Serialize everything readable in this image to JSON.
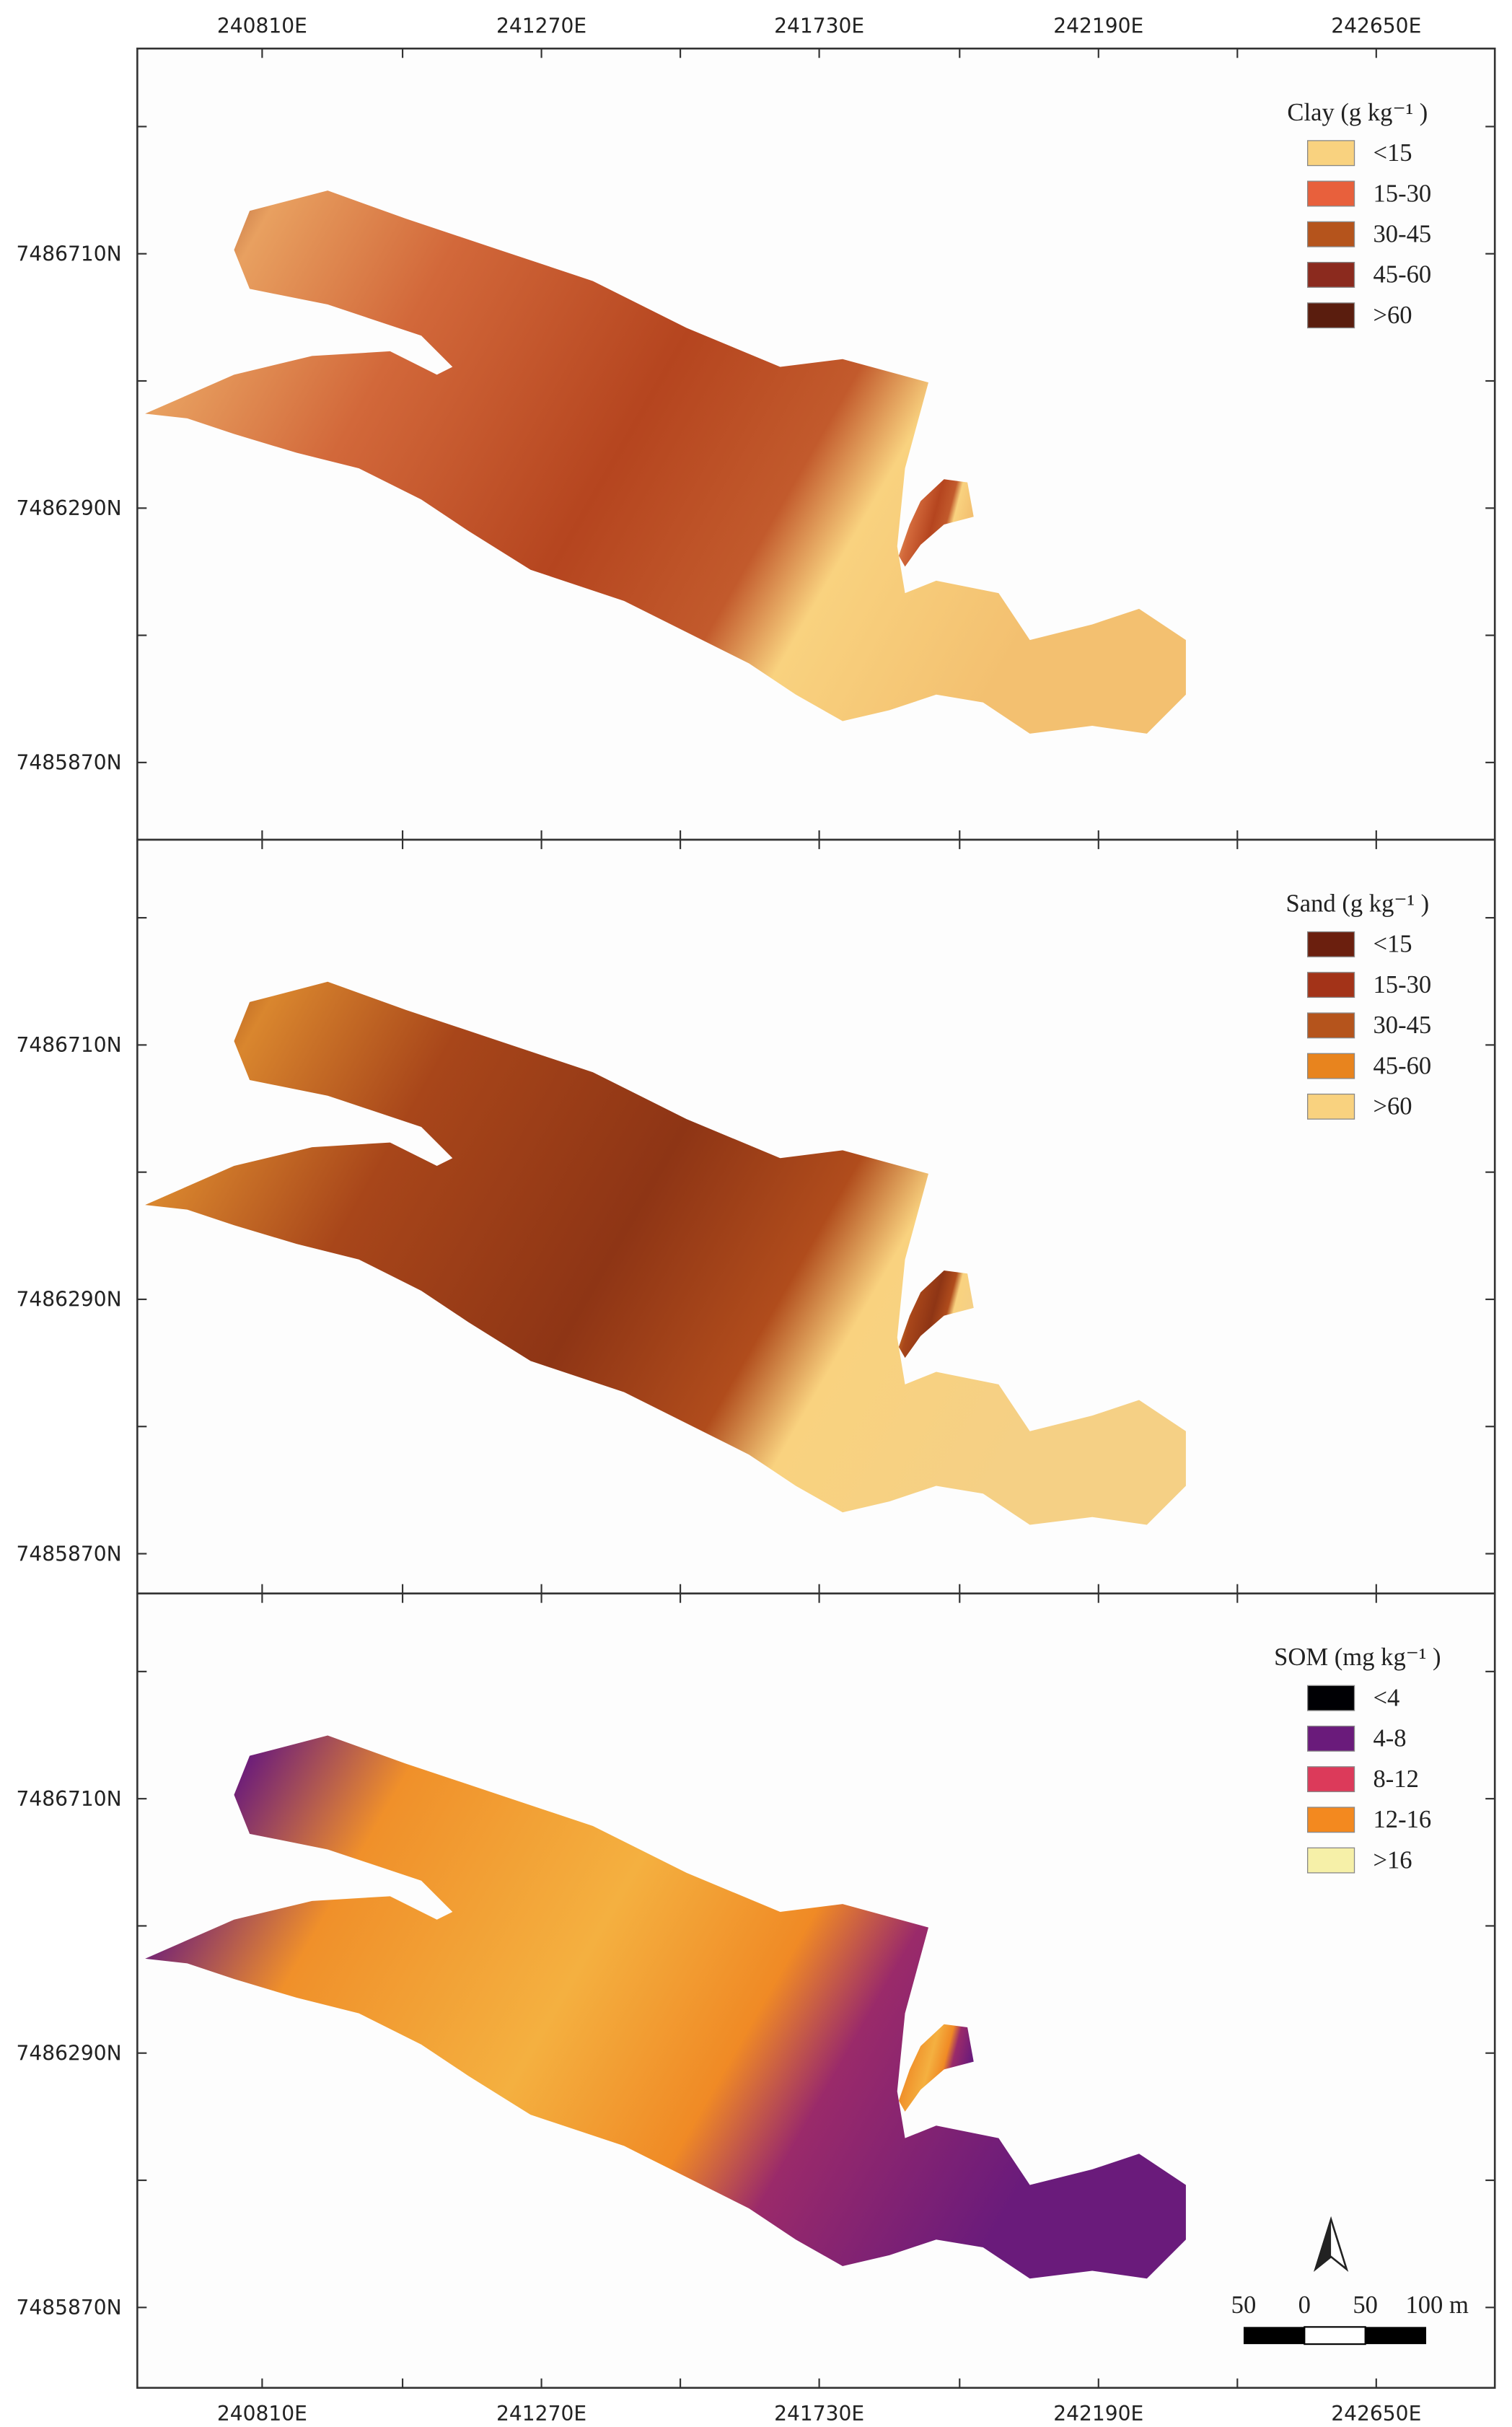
{
  "x_ticks": [
    "240810E",
    "241270E",
    "241730E",
    "242190E",
    "242650E"
  ],
  "y_ticks": [
    "7486710N",
    "7486290N",
    "7485870N"
  ],
  "panels": [
    {
      "legend": {
        "title": "Clay (g kg⁻¹ )",
        "items": [
          {
            "label": "<15",
            "color": "#f9d27f"
          },
          {
            "label": "15-30",
            "color": "#e8603c"
          },
          {
            "label": "30-45",
            "color": "#b5541c"
          },
          {
            "label": "45-60",
            "color": "#8b2a1e"
          },
          {
            "label": ">60",
            "color": "#5a1d0e"
          }
        ]
      }
    },
    {
      "legend": {
        "title": "Sand (g kg⁻¹ )",
        "items": [
          {
            "label": "<15",
            "color": "#6b1f0e"
          },
          {
            "label": "15-30",
            "color": "#a33318"
          },
          {
            "label": "30-45",
            "color": "#b5541c"
          },
          {
            "label": "45-60",
            "color": "#e8841e"
          },
          {
            "label": ">60",
            "color": "#f9d27f"
          }
        ]
      }
    },
    {
      "legend": {
        "title": "SOM (mg kg⁻¹ )",
        "items": [
          {
            "label": "<4",
            "color": "#000004"
          },
          {
            "label": "4-8",
            "color": "#6a1b7b"
          },
          {
            "label": "8-12",
            "color": "#dc3a5a"
          },
          {
            "label": "12-16",
            "color": "#f3891f"
          },
          {
            "label": ">16",
            "color": "#f6f0a8"
          }
        ]
      }
    }
  ],
  "scale_bar": {
    "labels": [
      "50",
      "0",
      "50",
      "100 m"
    ]
  }
}
